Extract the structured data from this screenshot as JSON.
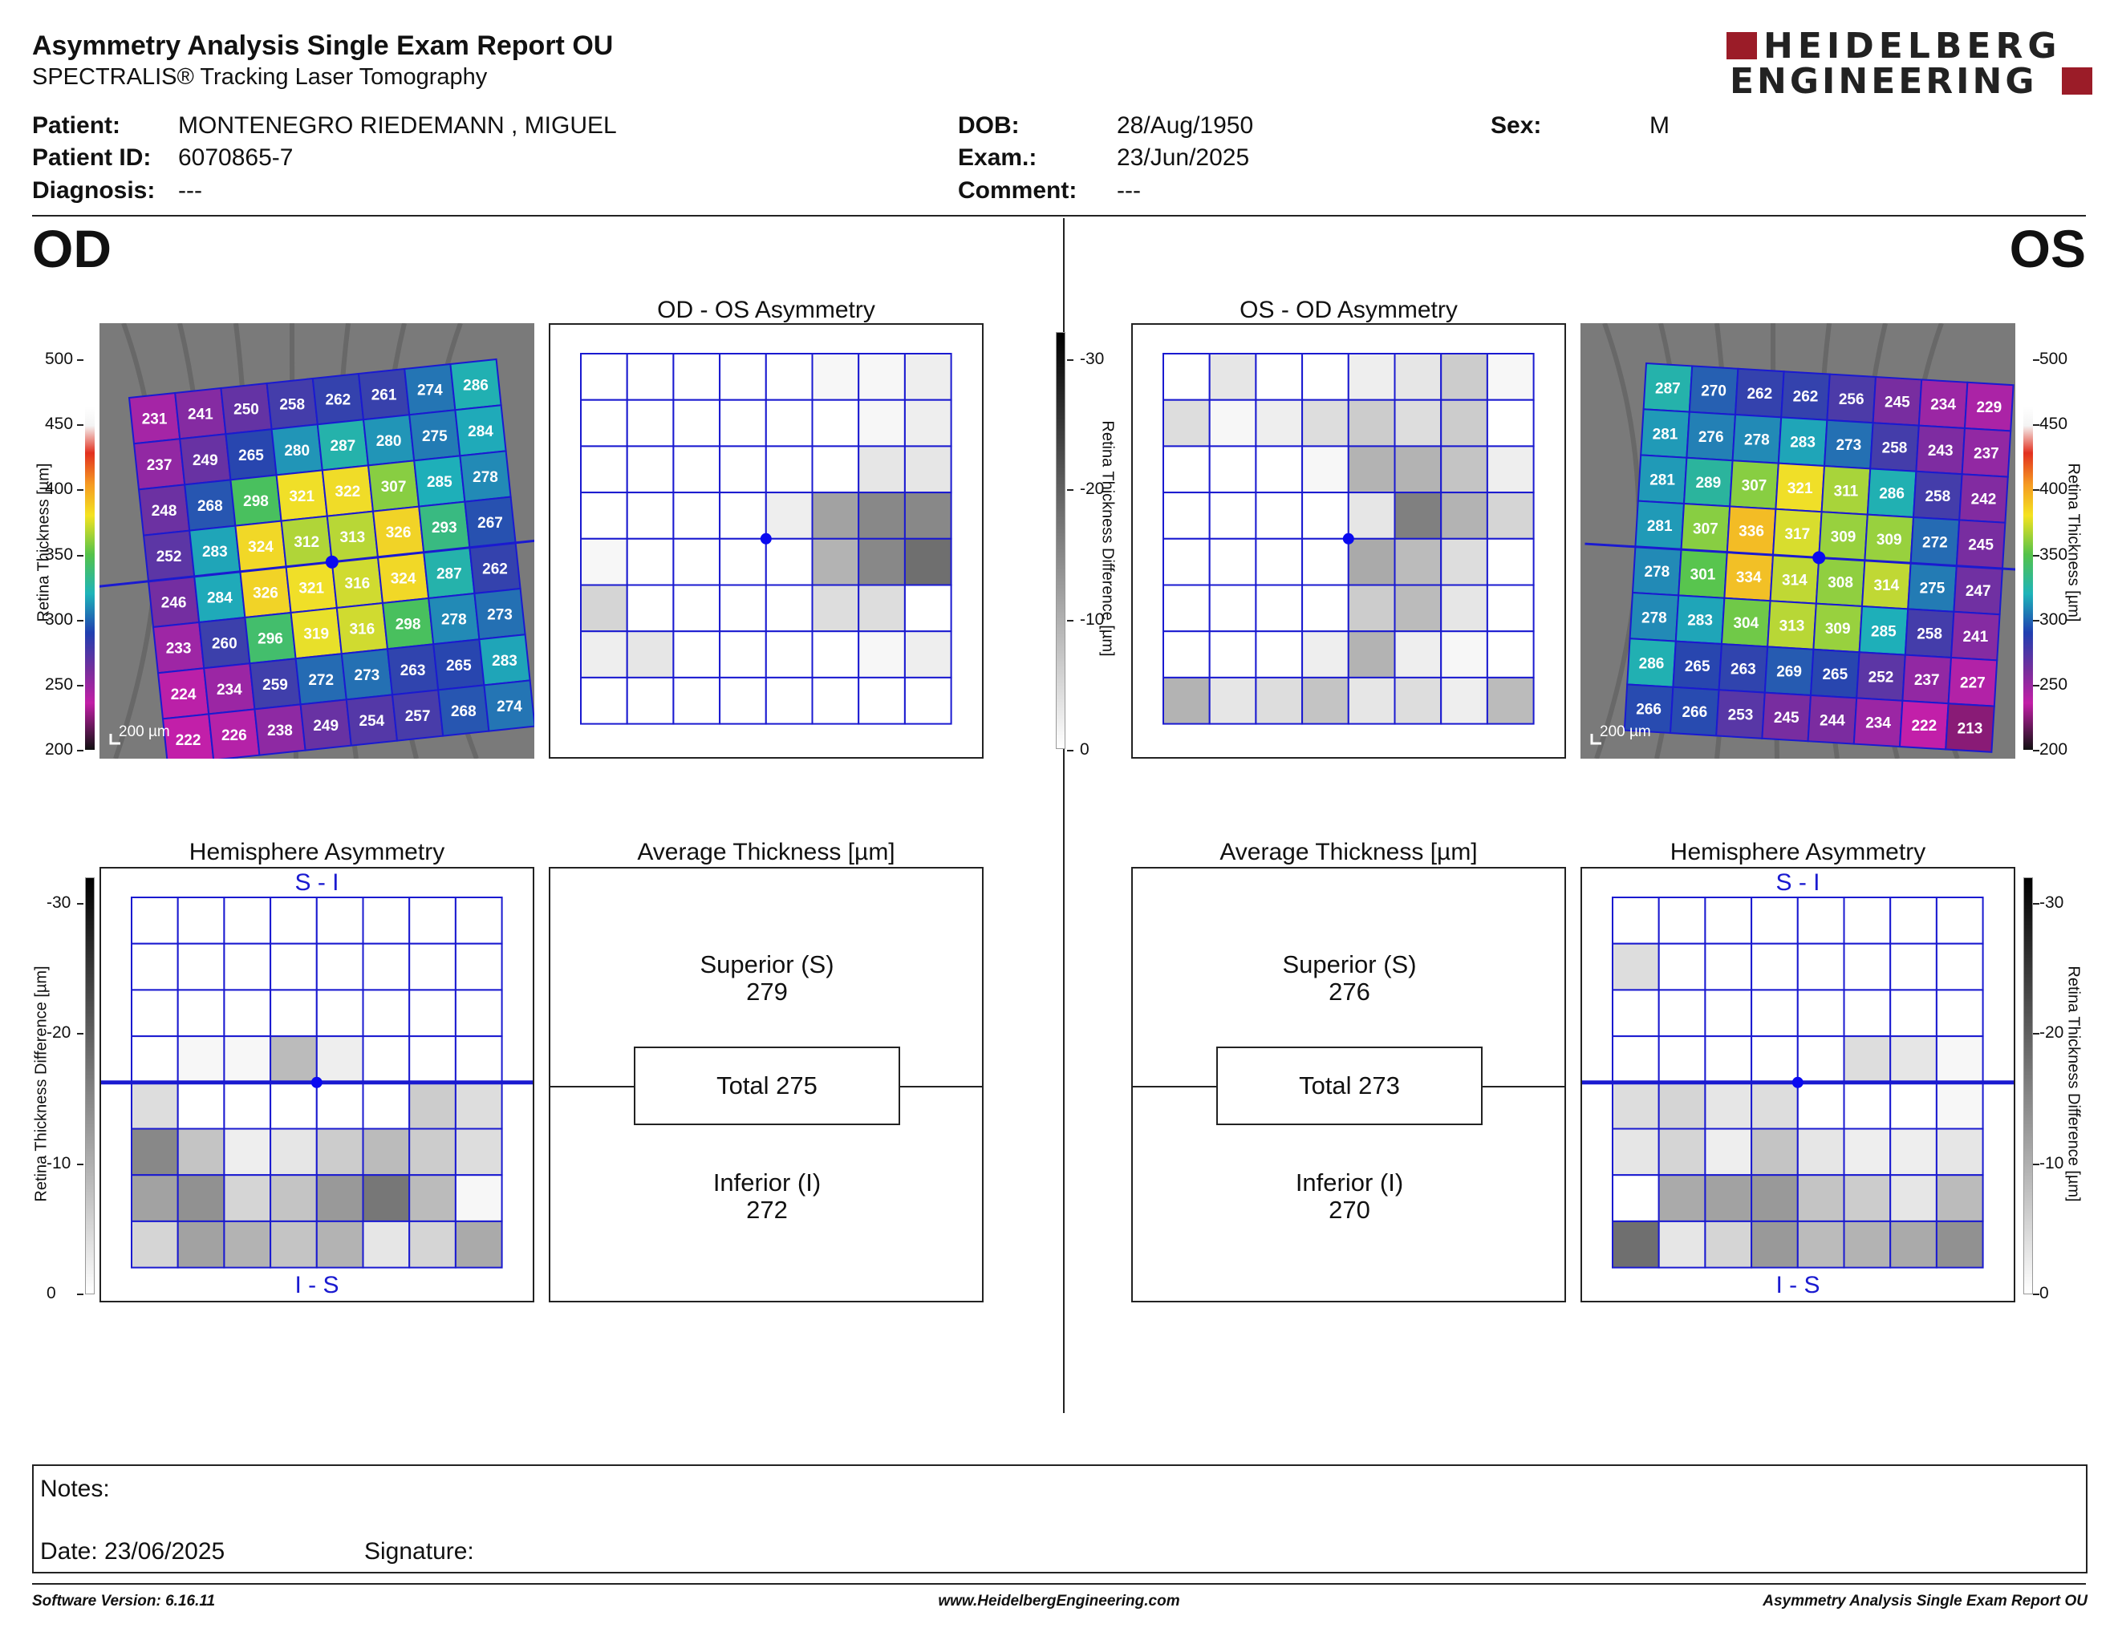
{
  "header": {
    "title": "Asymmetry Analysis Single Exam Report OU",
    "subtitle": "SPECTRALIS® Tracking Laser Tomography",
    "logo_line1": "HEIDELBERG",
    "logo_line2": "ENGINEERING"
  },
  "patient": {
    "patient_label": "Patient:",
    "patient_value": "MONTENEGRO RIEDEMANN , MIGUEL",
    "id_label": "Patient ID:",
    "id_value": "6070865-7",
    "diagnosis_label": "Diagnosis:",
    "diagnosis_value": "---",
    "dob_label": "DOB:",
    "dob_value": "28/Aug/1950",
    "exam_label": "Exam.:",
    "exam_value": "23/Jun/2025",
    "comment_label": "Comment:",
    "comment_value": "---",
    "sex_label": "Sex:",
    "sex_value": "M"
  },
  "eyes": {
    "od": "OD",
    "os": "OS"
  },
  "titles": {
    "od_os": "OD - OS Asymmetry",
    "os_od": "OS - OD Asymmetry",
    "hemi_left": "Hemisphere Asymmetry",
    "hemi_right": "Hemisphere Asymmetry",
    "avg_left": "Average Thickness [µm]",
    "avg_right": "Average Thickness [µm]"
  },
  "scales": {
    "thickness_label": "Retina  Thickness [µm]",
    "thickness_ticks": [
      "500",
      "450",
      "400",
      "350",
      "300",
      "250",
      "200"
    ],
    "diff_label": "Retina Thickness Difference [µm]",
    "diff_ticks": [
      "-30",
      "-20",
      "-10",
      "0"
    ],
    "scale_bar": "200 µm"
  },
  "colors": {
    "grid_blue": "#1a1ad0",
    "fovea": "#0a0af0"
  },
  "hemi_labels": {
    "top": "S - I",
    "bottom": "I - S"
  },
  "avg_od": {
    "superior_label": "Superior (S)",
    "superior_value": "279",
    "total_label": "Total 275",
    "inferior_label": "Inferior (I)",
    "inferior_value": "272"
  },
  "avg_os": {
    "superior_label": "Superior (S)",
    "superior_value": "276",
    "total_label": "Total 273",
    "inferior_label": "Inferior (I)",
    "inferior_value": "270"
  },
  "notes": {
    "notes_label": "Notes:",
    "date_label": "Date: 23/06/2025",
    "signature_label": "Signature:"
  },
  "footer": {
    "version": "Software Version: 6.16.11",
    "url": "www.HeidelbergEngineering.com",
    "report": "Asymmetry Analysis Single Exam Report OU"
  },
  "chart_data": [
    {
      "type": "heatmap",
      "name": "od_thickness_grid",
      "unit": "µm",
      "values": [
        [
          231,
          241,
          250,
          258,
          262,
          261,
          274,
          286
        ],
        [
          237,
          249,
          265,
          280,
          287,
          280,
          275,
          284
        ],
        [
          248,
          268,
          298,
          321,
          322,
          307,
          285,
          278
        ],
        [
          252,
          283,
          324,
          312,
          313,
          326,
          293,
          267
        ],
        [
          246,
          284,
          326,
          321,
          316,
          324,
          287,
          262
        ],
        [
          233,
          260,
          296,
          319,
          316,
          298,
          278,
          273
        ],
        [
          224,
          234,
          259,
          272,
          273,
          263,
          265,
          283
        ],
        [
          222,
          226,
          238,
          249,
          254,
          257,
          268,
          274
        ]
      ],
      "color_range": [
        200,
        500
      ]
    },
    {
      "type": "heatmap",
      "name": "os_thickness_grid",
      "unit": "µm",
      "values": [
        [
          287,
          270,
          262,
          262,
          256,
          245,
          234,
          229
        ],
        [
          281,
          276,
          278,
          283,
          273,
          258,
          243,
          237
        ],
        [
          281,
          289,
          307,
          321,
          311,
          286,
          258,
          242
        ],
        [
          281,
          307,
          336,
          317,
          309,
          309,
          272,
          245
        ],
        [
          278,
          301,
          334,
          314,
          308,
          314,
          275,
          247
        ],
        [
          278,
          283,
          304,
          313,
          309,
          285,
          258,
          241
        ],
        [
          286,
          265,
          263,
          269,
          265,
          252,
          237,
          227
        ],
        [
          266,
          266,
          253,
          245,
          244,
          234,
          222,
          213
        ]
      ],
      "color_range": [
        200,
        500
      ]
    },
    {
      "type": "heatmap",
      "name": "od_os_asymmetry",
      "unit": "µm",
      "values": [
        [
          0,
          0,
          0,
          0,
          0,
          1,
          1,
          2
        ],
        [
          0,
          0,
          0,
          0,
          0,
          0,
          1,
          2
        ],
        [
          0,
          0,
          0,
          0,
          0,
          0,
          3,
          3
        ],
        [
          0,
          0,
          0,
          0,
          2,
          11,
          14,
          14
        ],
        [
          1,
          0,
          0,
          0,
          0,
          9,
          14,
          17
        ],
        [
          5,
          0,
          0,
          0,
          0,
          4,
          4,
          0
        ],
        [
          2,
          3,
          0,
          0,
          0,
          0,
          1,
          2
        ],
        [
          0,
          0,
          0,
          0,
          0,
          0,
          0,
          0
        ]
      ],
      "range": [
        -30,
        0
      ]
    },
    {
      "type": "heatmap",
      "name": "os_od_asymmetry",
      "unit": "µm",
      "values": [
        [
          0,
          3,
          0,
          0,
          2,
          3,
          6,
          1
        ],
        [
          4,
          1,
          2,
          4,
          6,
          4,
          6,
          0
        ],
        [
          0,
          0,
          0,
          1,
          9,
          9,
          7,
          2
        ],
        [
          0,
          0,
          0,
          0,
          3,
          15,
          9,
          5
        ],
        [
          0,
          0,
          0,
          0,
          10,
          8,
          4,
          0
        ],
        [
          0,
          0,
          0,
          0,
          6,
          8,
          3,
          0
        ],
        [
          0,
          0,
          0,
          2,
          9,
          2,
          1,
          0
        ],
        [
          9,
          3,
          4,
          7,
          3,
          4,
          2,
          8
        ]
      ],
      "range": [
        -30,
        0
      ]
    },
    {
      "type": "heatmap",
      "name": "od_hemisphere_asymmetry",
      "unit": "µm",
      "values": [
        [
          0,
          0,
          0,
          0,
          0,
          0,
          0,
          0
        ],
        [
          0,
          0,
          0,
          0,
          0,
          0,
          0,
          0
        ],
        [
          0,
          0,
          0,
          0,
          0,
          0,
          0,
          0
        ],
        [
          0,
          1,
          1,
          8,
          2,
          0,
          0,
          0
        ],
        [
          4,
          0,
          0,
          0,
          0,
          0,
          6,
          4
        ],
        [
          14,
          7,
          2,
          3,
          6,
          8,
          6,
          4
        ],
        [
          11,
          13,
          5,
          7,
          12,
          16,
          8,
          1
        ],
        [
          5,
          11,
          9,
          7,
          9,
          3,
          5,
          10
        ]
      ],
      "range": [
        -30,
        0
      ]
    },
    {
      "type": "heatmap",
      "name": "os_hemisphere_asymmetry",
      "unit": "µm",
      "values": [
        [
          0,
          0,
          0,
          0,
          0,
          0,
          0,
          0
        ],
        [
          4,
          0,
          0,
          0,
          0,
          0,
          0,
          0
        ],
        [
          0,
          0,
          0,
          0,
          0,
          0,
          0,
          0
        ],
        [
          0,
          0,
          0,
          0,
          0,
          4,
          3,
          1
        ],
        [
          4,
          5,
          3,
          4,
          0,
          0,
          0,
          1
        ],
        [
          3,
          5,
          2,
          7,
          3,
          2,
          2,
          3
        ],
        [
          0,
          10,
          11,
          12,
          7,
          6,
          3,
          8
        ],
        [
          17,
          3,
          5,
          12,
          8,
          9,
          10,
          13
        ]
      ],
      "range": [
        -30,
        0
      ]
    }
  ]
}
